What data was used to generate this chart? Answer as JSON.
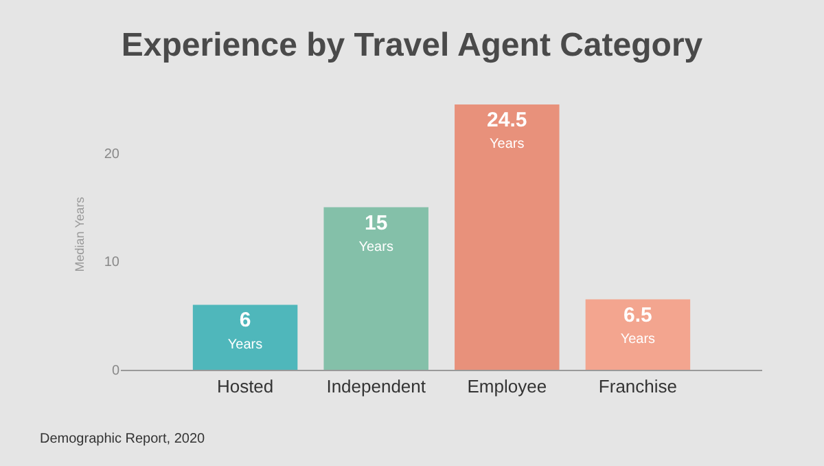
{
  "chart_data": {
    "type": "bar",
    "title": "Experience by Travel Agent Category",
    "ylabel": "Median Years",
    "categories": [
      "Hosted",
      "Independent",
      "Employee",
      "Franchise"
    ],
    "values": [
      6,
      15,
      24.5,
      6.5
    ],
    "colors": [
      "#4fb7bb",
      "#84c0a9",
      "#e8917b",
      "#f3a58f"
    ],
    "value_labels": [
      "6\nYears",
      "15\nYears",
      "24.5\nYears",
      "6.5\nYears"
    ],
    "ylim": [
      0,
      25
    ],
    "yticks": [
      0,
      10,
      20
    ],
    "grid": false,
    "annotations": [
      "Demographic Report, 2020"
    ]
  }
}
